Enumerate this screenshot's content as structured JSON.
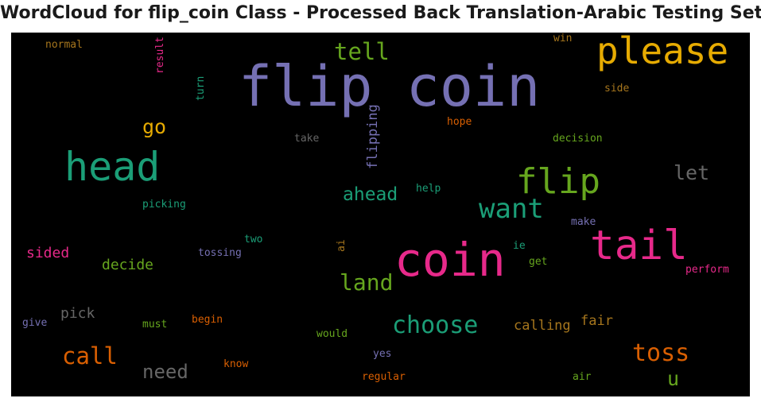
{
  "title": "WordCloud for flip_coin Class - Processed Back Translation-Arabic Testing Set",
  "words": {
    "flip_coin": {
      "text": "flip coin",
      "color": "#7570b3"
    },
    "please": {
      "text": "please",
      "color": "#e6ab02"
    },
    "head": {
      "text": "head",
      "color": "#1b9e77"
    },
    "tail": {
      "text": "tail",
      "color": "#e7298a"
    },
    "coin": {
      "text": "coin",
      "color": "#e7298a"
    },
    "flip": {
      "text": "flip",
      "color": "#66a61e"
    },
    "want": {
      "text": "want",
      "color": "#1b9e77"
    },
    "tell": {
      "text": "tell",
      "color": "#66a61e"
    },
    "choose": {
      "text": "choose",
      "color": "#1b9e77"
    },
    "toss": {
      "text": "toss",
      "color": "#d95f02"
    },
    "call": {
      "text": "call",
      "color": "#d95f02"
    },
    "land": {
      "text": "land",
      "color": "#66a61e"
    },
    "go": {
      "text": "go",
      "color": "#e6ab02"
    },
    "let": {
      "text": "let",
      "color": "#666666"
    },
    "ahead": {
      "text": "ahead",
      "color": "#1b9e77"
    },
    "need": {
      "text": "need",
      "color": "#666666"
    },
    "u": {
      "text": "u",
      "color": "#66a61e"
    },
    "decide": {
      "text": "decide",
      "color": "#66a61e"
    },
    "sided": {
      "text": "sided",
      "color": "#e7298a"
    },
    "calling": {
      "text": "calling",
      "color": "#a6761d"
    },
    "fair": {
      "text": "fair",
      "color": "#a6761d"
    },
    "pick": {
      "text": "pick",
      "color": "#666666"
    },
    "flipping": {
      "text": "flipping",
      "color": "#7570b3"
    },
    "normal": {
      "text": "normal",
      "color": "#a6761d"
    },
    "result": {
      "text": "result",
      "color": "#e7298a"
    },
    "turn": {
      "text": "turn",
      "color": "#1b9e77"
    },
    "win": {
      "text": "win",
      "color": "#a6761d"
    },
    "side": {
      "text": "side",
      "color": "#a6761d"
    },
    "hope": {
      "text": "hope",
      "color": "#d95f02"
    },
    "take": {
      "text": "take",
      "color": "#666666"
    },
    "decision": {
      "text": "decision",
      "color": "#66a61e"
    },
    "help": {
      "text": "help",
      "color": "#1b9e77"
    },
    "picking": {
      "text": "picking",
      "color": "#1b9e77"
    },
    "make": {
      "text": "make",
      "color": "#7570b3"
    },
    "two": {
      "text": "two",
      "color": "#1b9e77"
    },
    "tossing": {
      "text": "tossing",
      "color": "#7570b3"
    },
    "ai": {
      "text": "ai",
      "color": "#a6761d"
    },
    "ie": {
      "text": "ie",
      "color": "#1b9e77"
    },
    "get": {
      "text": "get",
      "color": "#66a61e"
    },
    "perform": {
      "text": "perform",
      "color": "#e7298a"
    },
    "give": {
      "text": "give",
      "color": "#7570b3"
    },
    "must": {
      "text": "must",
      "color": "#66a61e"
    },
    "begin": {
      "text": "begin",
      "color": "#d95f02"
    },
    "would": {
      "text": "would",
      "color": "#66a61e"
    },
    "yes": {
      "text": "yes",
      "color": "#7570b3"
    },
    "know": {
      "text": "know",
      "color": "#d95f02"
    },
    "regular": {
      "text": "regular",
      "color": "#d95f02"
    },
    "air": {
      "text": "air",
      "color": "#66a61e"
    }
  }
}
